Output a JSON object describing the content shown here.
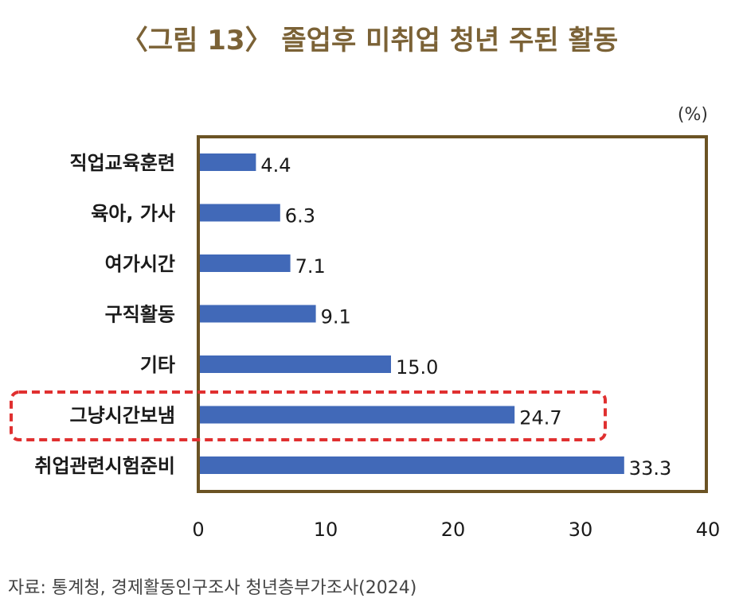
{
  "chart_data": {
    "type": "bar",
    "orientation": "horizontal",
    "title": "〈그림 13〉 졸업후 미취업 청년 주된 활동",
    "unit": "(%)",
    "categories": [
      "직업교육훈련",
      "육아, 가사",
      "여가시간",
      "구직활동",
      "기타",
      "그냥시간보냄",
      "취업관련시험준비"
    ],
    "values": [
      4.4,
      6.3,
      7.1,
      9.1,
      15.0,
      24.7,
      33.3
    ],
    "value_labels": [
      "4.4",
      "6.3",
      "7.1",
      "9.1",
      "15.0",
      "24.7",
      "33.3"
    ],
    "xlim": [
      0,
      40
    ],
    "xticks": [
      "0",
      "10",
      "20",
      "30",
      "40"
    ],
    "highlighted_category": "그냥시간보냄",
    "grid": false,
    "source": "자료: 통계청, 경제활동인구조사 청년층부가조사(2024)",
    "colors": {
      "bar": "#4169b8",
      "frame": "#6b5324",
      "title": "#7b6236",
      "highlight": "#e03030"
    }
  }
}
